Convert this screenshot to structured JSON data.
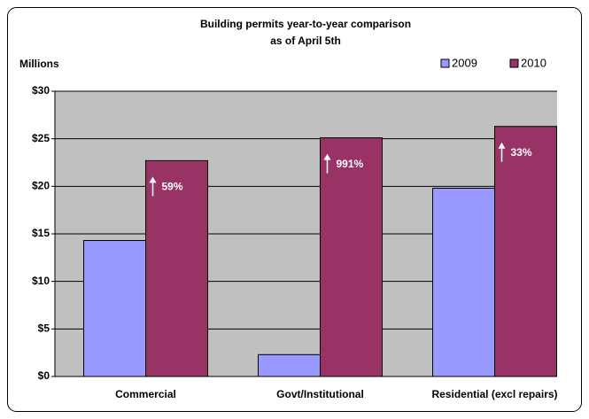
{
  "chart_data": {
    "type": "bar",
    "title": "Building permits year-to-year comparison",
    "subtitle": "as of April 5th",
    "y_axis_label": "Millions",
    "categories": [
      "Commercial",
      "Govt/Institutional",
      "Residential (excl repairs)"
    ],
    "series": [
      {
        "name": "2009",
        "color": "#9999ff",
        "values": [
          14.3,
          2.3,
          19.8
        ]
      },
      {
        "name": "2010",
        "color": "#993366",
        "values": [
          22.7,
          25.1,
          26.3
        ]
      }
    ],
    "annotations": [
      "59%",
      "991%",
      "33%"
    ],
    "ylim": [
      0,
      30
    ],
    "yticks": [
      {
        "value": 0,
        "label": "$0"
      },
      {
        "value": 5,
        "label": "$5"
      },
      {
        "value": 10,
        "label": "$10"
      },
      {
        "value": 15,
        "label": "$15"
      },
      {
        "value": 20,
        "label": "$20"
      },
      {
        "value": 25,
        "label": "$25"
      },
      {
        "value": 30,
        "label": "$30"
      }
    ],
    "grid": true,
    "legend": "top-right"
  }
}
